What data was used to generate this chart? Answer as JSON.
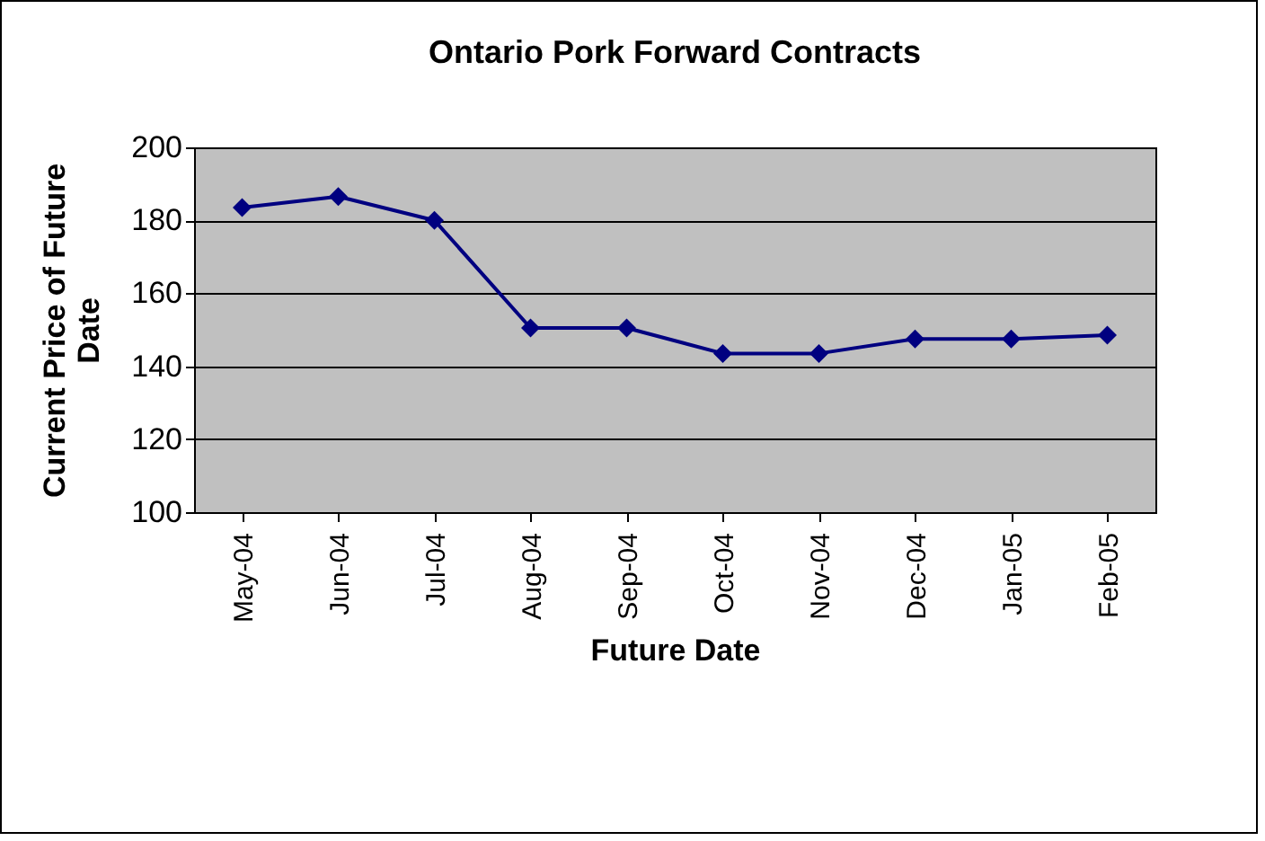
{
  "chart_data": {
    "type": "line",
    "title": "Ontario Pork Forward Contracts",
    "xlabel": "Future Date",
    "ylabel": "Current Price of Future Date",
    "categories": [
      "May-04",
      "Jun-04",
      "Jul-04",
      "Aug-04",
      "Sep-04",
      "Oct-04",
      "Nov-04",
      "Dec-04",
      "Jan-05",
      "Feb-05"
    ],
    "series": [
      {
        "color": "#000080",
        "values": [
          183.5,
          186.5,
          180,
          150.5,
          150.5,
          143.5,
          143.5,
          147.5,
          147.5,
          148.5
        ]
      }
    ],
    "ylim": [
      100,
      200
    ],
    "yticks": [
      100,
      120,
      140,
      160,
      180,
      200
    ],
    "grid": "y",
    "marker": "diamond",
    "line_style": "solid",
    "legend": false
  }
}
